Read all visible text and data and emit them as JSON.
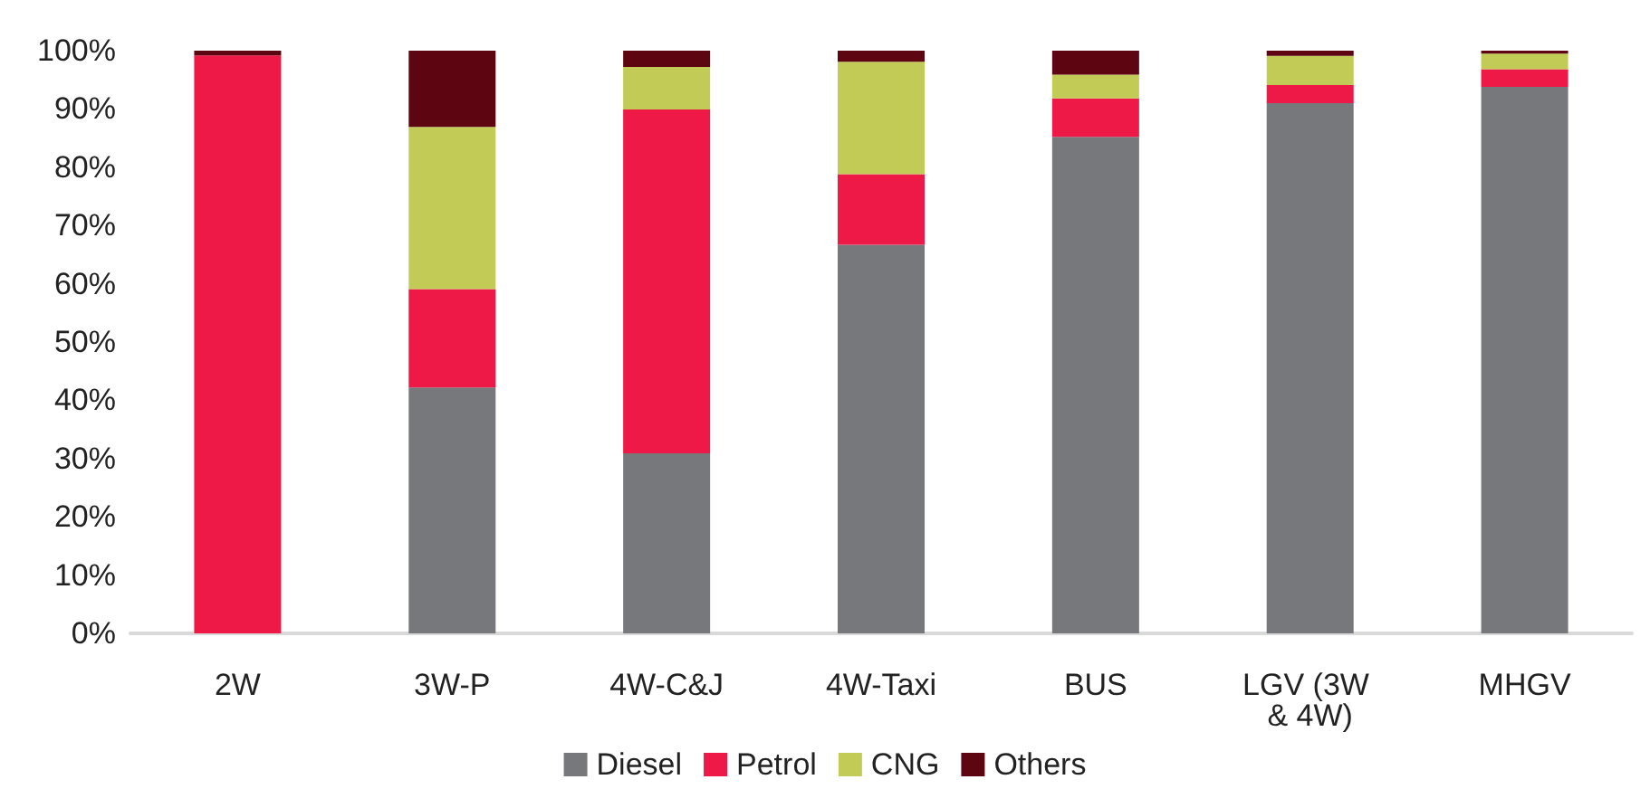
{
  "chart_data": {
    "type": "bar",
    "stacked": true,
    "categories": [
      "2W",
      "3W-P",
      "4W-C&J",
      "4W-Taxi",
      "BUS",
      "LGV (3W & 4W)",
      "MHGV"
    ],
    "series": [
      {
        "name": "Diesel",
        "color": "#77787b",
        "values": [
          0,
          42.2,
          30.9,
          66.7,
          85.2,
          91.0,
          93.8
        ]
      },
      {
        "name": "Petrol",
        "color": "#ee1946",
        "values": [
          99.2,
          16.9,
          59.0,
          12.1,
          6.6,
          3.1,
          3.0
        ]
      },
      {
        "name": "CNG",
        "color": "#c2cb55",
        "values": [
          0,
          27.8,
          7.3,
          19.3,
          4.1,
          5.0,
          2.7
        ]
      },
      {
        "name": "Others",
        "color": "#5e0512",
        "values": [
          0.8,
          13.1,
          2.8,
          1.9,
          4.1,
          0.9,
          0.5
        ]
      }
    ],
    "ylim": [
      0,
      100
    ],
    "yticks": [
      {
        "value": 0,
        "label": "0%"
      },
      {
        "value": 10,
        "label": "10%"
      },
      {
        "value": 20,
        "label": "20%"
      },
      {
        "value": 30,
        "label": "30%"
      },
      {
        "value": 40,
        "label": "40%"
      },
      {
        "value": 50,
        "label": "50%"
      },
      {
        "value": 60,
        "label": "60%"
      },
      {
        "value": 70,
        "label": "70%"
      },
      {
        "value": 80,
        "label": "80%"
      },
      {
        "value": 90,
        "label": "90%"
      },
      {
        "value": 100,
        "label": "100%"
      }
    ],
    "grid": false,
    "legend": "bottom"
  }
}
